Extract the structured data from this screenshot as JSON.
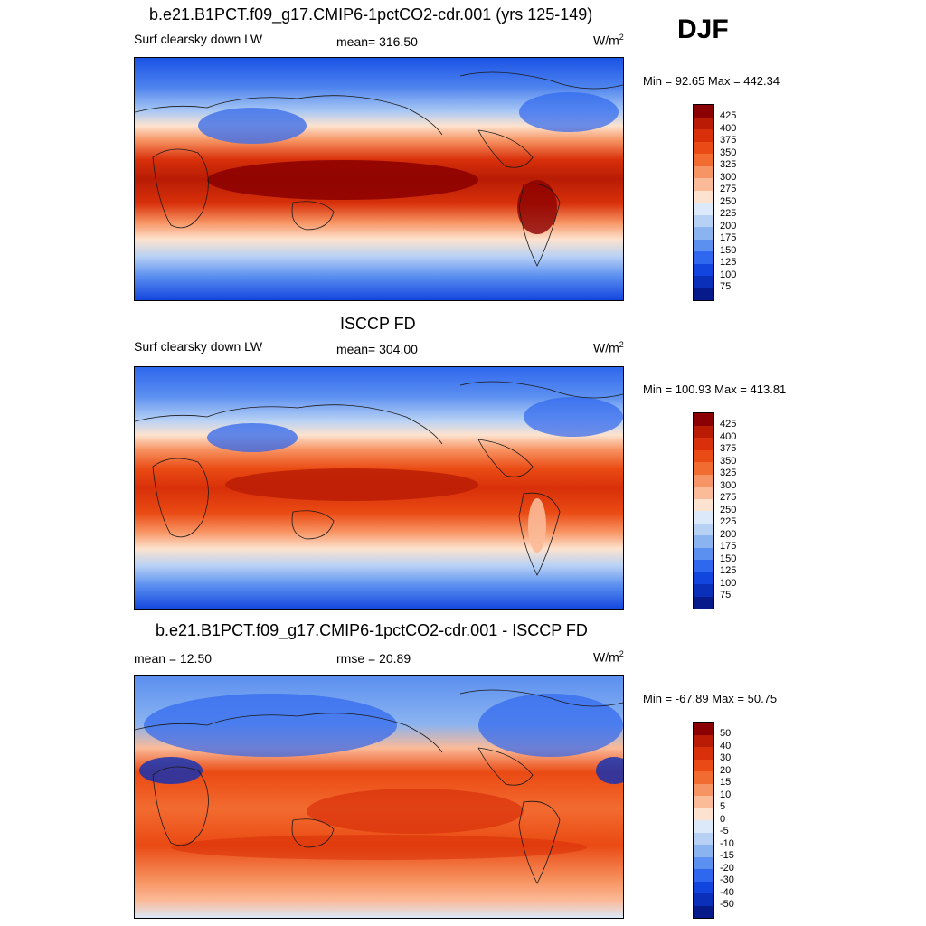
{
  "season": "DJF",
  "panels": [
    {
      "title": "b.e21.B1PCT.f09_g17.CMIP6-1pctCO2-cdr.001 (yrs 125-149)",
      "left_label": "Surf clearsky down LW",
      "center_label": "mean= 316.50",
      "units_base": "W/m",
      "units_exp": "2",
      "minmax": "Min =  92.65 Max = 442.34",
      "colorbar_ticks": [
        "425",
        "400",
        "375",
        "350",
        "325",
        "300",
        "275",
        "250",
        "225",
        "200",
        "175",
        "150",
        "125",
        "100",
        "75"
      ]
    },
    {
      "title": "ISCCP FD",
      "left_label": "Surf clearsky down LW",
      "center_label": "mean= 304.00",
      "units_base": "W/m",
      "units_exp": "2",
      "minmax": "Min = 100.93 Max = 413.81",
      "colorbar_ticks": [
        "425",
        "400",
        "375",
        "350",
        "325",
        "300",
        "275",
        "250",
        "225",
        "200",
        "175",
        "150",
        "125",
        "100",
        "75"
      ]
    },
    {
      "title": "b.e21.B1PCT.f09_g17.CMIP6-1pctCO2-cdr.001 - ISCCP FD",
      "left_label": "mean =  12.50",
      "center_label": "rmse =  20.89",
      "units_base": "W/m",
      "units_exp": "2",
      "minmax": "Min = -67.89 Max =  50.75",
      "colorbar_ticks": [
        "50",
        "40",
        "30",
        "20",
        "15",
        "10",
        "5",
        "0",
        "-5",
        "-10",
        "-15",
        "-20",
        "-30",
        "-40",
        "-50"
      ]
    }
  ],
  "colors": {
    "colorbar": [
      "#8b0000",
      "#b81c05",
      "#d8300a",
      "#ea4a13",
      "#f26b30",
      "#f79463",
      "#fbba98",
      "#fde3cf",
      "#dbe9f9",
      "#b7d1f5",
      "#8ab3f0",
      "#5b8ff0",
      "#2f67ee",
      "#1245dd",
      "#0a2fb8",
      "#061a8a"
    ],
    "land_outline": "#1a1a1a"
  }
}
